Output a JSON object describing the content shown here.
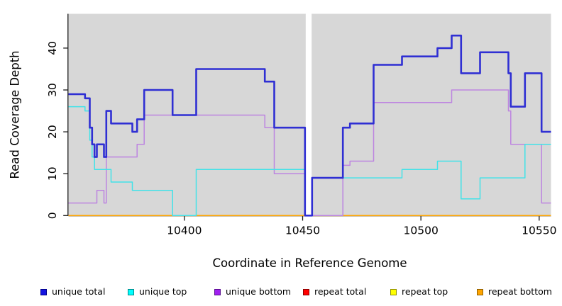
{
  "chart_data": {
    "type": "line",
    "subtype": "step-post",
    "title": "",
    "xlabel": "Coordinate in Reference Genome",
    "ylabel": "Read Coverage Depth",
    "x_range": [
      10351,
      10555
    ],
    "y_range": [
      0,
      48
    ],
    "x_ticks": [
      10400,
      10450,
      10500,
      10550
    ],
    "y_ticks": [
      0,
      10,
      20,
      30,
      40
    ],
    "grid": "off",
    "plot_bg": "#d7d7d7",
    "axis_color": "#1a1a1a",
    "gap": {
      "from": 10451.3,
      "to": 10453.8,
      "note": "white missing-data stripe"
    },
    "series": [
      {
        "name": "repeat total",
        "color": "#e00000",
        "width": 1.5,
        "points": [
          [
            10351,
            0
          ]
        ]
      },
      {
        "name": "repeat top",
        "color": "#ffff00",
        "width": 1.5,
        "points": [
          [
            10351,
            0
          ]
        ]
      },
      {
        "name": "repeat bottom",
        "color": "#ffa500",
        "width": 1.7,
        "points": [
          [
            10351,
            0
          ]
        ]
      },
      {
        "name": "unique bottom",
        "color": "#bd85e0",
        "width": 1.5,
        "points": [
          [
            10351,
            3
          ],
          [
            10363,
            6
          ],
          [
            10366,
            3
          ],
          [
            10367,
            14
          ],
          [
            10380,
            17
          ],
          [
            10383,
            24
          ],
          [
            10434,
            21
          ],
          [
            10438,
            10
          ],
          [
            10451,
            0
          ],
          [
            10467,
            12
          ],
          [
            10470,
            13
          ],
          [
            10480,
            27
          ],
          [
            10513,
            30
          ],
          [
            10537,
            25
          ],
          [
            10538,
            17
          ],
          [
            10551,
            3
          ]
        ]
      },
      {
        "name": "unique top",
        "color": "#42e2e8",
        "width": 1.5,
        "points": [
          [
            10351,
            26
          ],
          [
            10358,
            25
          ],
          [
            10360,
            18
          ],
          [
            10361,
            14
          ],
          [
            10362,
            11
          ],
          [
            10369,
            8
          ],
          [
            10378,
            6
          ],
          [
            10395,
            0
          ],
          [
            10405,
            11
          ],
          [
            10451,
            0
          ],
          [
            10454,
            9
          ],
          [
            10492,
            11
          ],
          [
            10507,
            13
          ],
          [
            10517,
            4
          ],
          [
            10525,
            9
          ],
          [
            10544,
            17
          ]
        ]
      },
      {
        "name": "unique total",
        "color": "#2f2fd3",
        "width": 2.6,
        "points": [
          [
            10351,
            29
          ],
          [
            10358,
            28
          ],
          [
            10360,
            21
          ],
          [
            10361,
            17
          ],
          [
            10362,
            14
          ],
          [
            10363,
            17
          ],
          [
            10366,
            14
          ],
          [
            10367,
            25
          ],
          [
            10369,
            22
          ],
          [
            10378,
            20
          ],
          [
            10380,
            23
          ],
          [
            10383,
            30
          ],
          [
            10395,
            24
          ],
          [
            10405,
            35
          ],
          [
            10434,
            32
          ],
          [
            10438,
            21
          ],
          [
            10451,
            0
          ],
          [
            10454,
            9
          ],
          [
            10467,
            21
          ],
          [
            10470,
            22
          ],
          [
            10480,
            36
          ],
          [
            10492,
            38
          ],
          [
            10507,
            40
          ],
          [
            10513,
            43
          ],
          [
            10517,
            34
          ],
          [
            10525,
            39
          ],
          [
            10537,
            34
          ],
          [
            10538,
            26
          ],
          [
            10544,
            34
          ],
          [
            10551,
            20
          ]
        ]
      }
    ],
    "legend": [
      {
        "label": "unique total",
        "fill": "#1414e0",
        "border": "#00008b"
      },
      {
        "label": "unique top",
        "fill": "#00ffff",
        "border": "#008b8b"
      },
      {
        "label": "unique bottom",
        "fill": "#a020f0",
        "border": "#5a0f8f"
      },
      {
        "label": "repeat total",
        "fill": "#ff0000",
        "border": "#8b0000"
      },
      {
        "label": "repeat top",
        "fill": "#ffff00",
        "border": "#8f8f00"
      },
      {
        "label": "repeat bottom",
        "fill": "#ffa500",
        "border": "#8f5f00"
      }
    ],
    "legend_position": "bottom"
  }
}
